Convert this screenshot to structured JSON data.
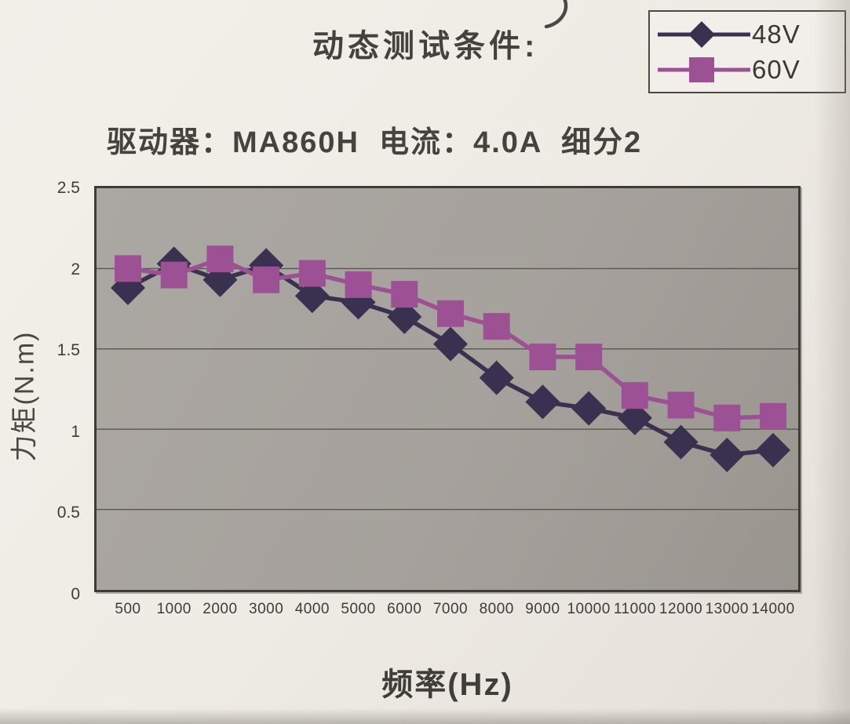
{
  "page": {
    "title": "动态测试条件:",
    "subtitle": "驱动器：MA860H  电流：4.0A  细分2"
  },
  "chart_data": {
    "type": "line",
    "title": "动态测试条件:",
    "subtitle": "驱动器：MA860H  电流：4.0A  细分2",
    "xlabel": "频率(Hz)",
    "ylabel": "力矩(N.m)",
    "categories": [
      "500",
      "1000",
      "2000",
      "3000",
      "4000",
      "5000",
      "6000",
      "7000",
      "8000",
      "9000",
      "10000",
      "11000",
      "12000",
      "13000",
      "14000"
    ],
    "ylim": [
      0,
      2.5
    ],
    "yticks": [
      "0",
      "0.5",
      "1",
      "1.5",
      "2",
      "2.5"
    ],
    "grid": true,
    "legend_position": "top-right",
    "colors": {
      "series_48v": "#3a3150",
      "series_60v": "#9d5195",
      "plot_background": "#a6a19c",
      "gridline": "#514d49",
      "text": "#3e3c3a"
    },
    "series": [
      {
        "name": "48V",
        "marker": "diamond",
        "color": "#3a3150",
        "values": [
          1.88,
          2.03,
          1.93,
          2.02,
          1.83,
          1.79,
          1.7,
          1.53,
          1.32,
          1.17,
          1.13,
          1.07,
          0.92,
          0.84,
          0.87
        ]
      },
      {
        "name": "60V",
        "marker": "square",
        "color": "#9d5195",
        "values": [
          2.0,
          1.96,
          2.06,
          1.93,
          1.97,
          1.9,
          1.84,
          1.72,
          1.64,
          1.45,
          1.45,
          1.21,
          1.15,
          1.07,
          1.08
        ]
      }
    ]
  }
}
